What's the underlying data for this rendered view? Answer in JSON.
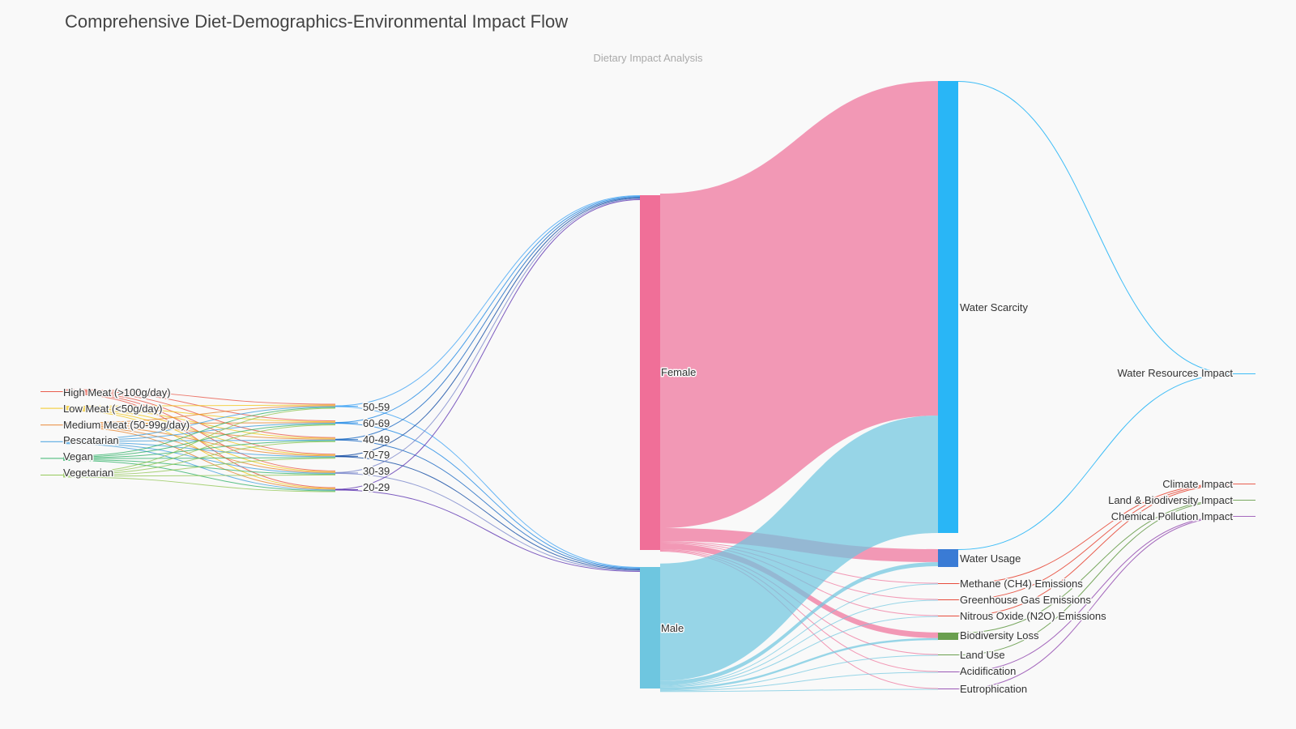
{
  "chart_data": {
    "type": "sankey",
    "title": "Comprehensive Diet-Demographics-Environmental Impact Flow",
    "subtitle": "Dietary Impact Analysis",
    "nodes": [
      {
        "id": "high_meat",
        "label": "High Meat (>100g/day)",
        "color": "#e74c3c",
        "column": 0
      },
      {
        "id": "low_meat",
        "label": "Low Meat (<50g/day)",
        "color": "#f1c40f",
        "column": 0
      },
      {
        "id": "medium_meat",
        "label": "Medium Meat (50-99g/day)",
        "color": "#e67e22",
        "column": 0
      },
      {
        "id": "pescatarian",
        "label": "Pescatarian",
        "color": "#3498db",
        "column": 0
      },
      {
        "id": "vegan",
        "label": "Vegan",
        "color": "#27ae60",
        "column": 0
      },
      {
        "id": "vegetarian",
        "label": "Vegetarian",
        "color": "#8bc34a",
        "column": 0
      },
      {
        "id": "age_50_59",
        "label": "50-59",
        "color": "#42a5f5",
        "column": 1
      },
      {
        "id": "age_60_69",
        "label": "60-69",
        "color": "#1e88e5",
        "column": 1
      },
      {
        "id": "age_40_49",
        "label": "40-49",
        "color": "#1565c0",
        "column": 1
      },
      {
        "id": "age_70_79",
        "label": "70-79",
        "color": "#0d47a1",
        "column": 1
      },
      {
        "id": "age_30_39",
        "label": "30-39",
        "color": "#7986cb",
        "column": 1
      },
      {
        "id": "age_20_29",
        "label": "20-29",
        "color": "#5e35b1",
        "column": 1
      },
      {
        "id": "female",
        "label": "Female",
        "color": "#f06f98",
        "column": 2
      },
      {
        "id": "male",
        "label": "Male",
        "color": "#6ec6e0",
        "column": 2
      },
      {
        "id": "water_scarcity",
        "label": "Water Scarcity",
        "color": "#29b6f6",
        "column": 3
      },
      {
        "id": "water_usage",
        "label": "Water Usage",
        "color": "#3a7bd5",
        "column": 3
      },
      {
        "id": "methane",
        "label": "Methane (CH4) Emissions",
        "color": "#e74c3c",
        "column": 3
      },
      {
        "id": "ghg",
        "label": "Greenhouse Gas Emissions",
        "color": "#e74c3c",
        "column": 3
      },
      {
        "id": "n2o",
        "label": "Nitrous Oxide (N2O) Emissions",
        "color": "#e74c3c",
        "column": 3
      },
      {
        "id": "biodiversity",
        "label": "Biodiversity Loss",
        "color": "#6a9f4f",
        "column": 3
      },
      {
        "id": "land_use",
        "label": "Land Use",
        "color": "#6a9f4f",
        "column": 3
      },
      {
        "id": "acidification",
        "label": "Acidification",
        "color": "#9b59b6",
        "column": 3
      },
      {
        "id": "eutrophication",
        "label": "Eutrophication",
        "color": "#9b59b6",
        "column": 3
      },
      {
        "id": "water_resources",
        "label": "Water Resources Impact",
        "color": "#29b6f6",
        "column": 4
      },
      {
        "id": "climate",
        "label": "Climate Impact",
        "color": "#e74c3c",
        "column": 4
      },
      {
        "id": "land_bio",
        "label": "Land & Biodiversity Impact",
        "color": "#6a9f4f",
        "column": 4
      },
      {
        "id": "chemical",
        "label": "Chemical Pollution Impact",
        "color": "#9b59b6",
        "column": 4
      }
    ],
    "links": [
      {
        "source": "high_meat",
        "target": "age_50_59",
        "value": 1
      },
      {
        "source": "high_meat",
        "target": "age_60_69",
        "value": 1
      },
      {
        "source": "high_meat",
        "target": "age_40_49",
        "value": 1
      },
      {
        "source": "high_meat",
        "target": "age_70_79",
        "value": 1
      },
      {
        "source": "high_meat",
        "target": "age_30_39",
        "value": 1
      },
      {
        "source": "high_meat",
        "target": "age_20_29",
        "value": 1
      },
      {
        "source": "low_meat",
        "target": "age_50_59",
        "value": 1
      },
      {
        "source": "low_meat",
        "target": "age_60_69",
        "value": 1
      },
      {
        "source": "low_meat",
        "target": "age_40_49",
        "value": 1
      },
      {
        "source": "low_meat",
        "target": "age_70_79",
        "value": 1
      },
      {
        "source": "low_meat",
        "target": "age_30_39",
        "value": 1
      },
      {
        "source": "low_meat",
        "target": "age_20_29",
        "value": 1
      },
      {
        "source": "medium_meat",
        "target": "age_50_59",
        "value": 1
      },
      {
        "source": "medium_meat",
        "target": "age_60_69",
        "value": 1
      },
      {
        "source": "medium_meat",
        "target": "age_40_49",
        "value": 1
      },
      {
        "source": "medium_meat",
        "target": "age_70_79",
        "value": 1
      },
      {
        "source": "medium_meat",
        "target": "age_30_39",
        "value": 1
      },
      {
        "source": "medium_meat",
        "target": "age_20_29",
        "value": 1
      },
      {
        "source": "pescatarian",
        "target": "age_50_59",
        "value": 1
      },
      {
        "source": "pescatarian",
        "target": "age_60_69",
        "value": 1
      },
      {
        "source": "pescatarian",
        "target": "age_40_49",
        "value": 1
      },
      {
        "source": "pescatarian",
        "target": "age_70_79",
        "value": 1
      },
      {
        "source": "pescatarian",
        "target": "age_30_39",
        "value": 1
      },
      {
        "source": "pescatarian",
        "target": "age_20_29",
        "value": 1
      },
      {
        "source": "vegan",
        "target": "age_50_59",
        "value": 1
      },
      {
        "source": "vegan",
        "target": "age_60_69",
        "value": 1
      },
      {
        "source": "vegan",
        "target": "age_40_49",
        "value": 1
      },
      {
        "source": "vegan",
        "target": "age_70_79",
        "value": 1
      },
      {
        "source": "vegan",
        "target": "age_30_39",
        "value": 1
      },
      {
        "source": "vegan",
        "target": "age_20_29",
        "value": 1
      },
      {
        "source": "vegetarian",
        "target": "age_50_59",
        "value": 1
      },
      {
        "source": "vegetarian",
        "target": "age_60_69",
        "value": 1
      },
      {
        "source": "vegetarian",
        "target": "age_40_49",
        "value": 1
      },
      {
        "source": "vegetarian",
        "target": "age_70_79",
        "value": 1
      },
      {
        "source": "vegetarian",
        "target": "age_30_39",
        "value": 1
      },
      {
        "source": "vegetarian",
        "target": "age_20_29",
        "value": 1
      },
      {
        "source": "age_50_59",
        "target": "female",
        "value": 1
      },
      {
        "source": "age_50_59",
        "target": "male",
        "value": 1
      },
      {
        "source": "age_60_69",
        "target": "female",
        "value": 1
      },
      {
        "source": "age_60_69",
        "target": "male",
        "value": 1
      },
      {
        "source": "age_40_49",
        "target": "female",
        "value": 1
      },
      {
        "source": "age_40_49",
        "target": "male",
        "value": 1
      },
      {
        "source": "age_70_79",
        "target": "female",
        "value": 1
      },
      {
        "source": "age_70_79",
        "target": "male",
        "value": 1
      },
      {
        "source": "age_30_39",
        "target": "female",
        "value": 1
      },
      {
        "source": "age_30_39",
        "target": "male",
        "value": 1
      },
      {
        "source": "age_20_29",
        "target": "female",
        "value": 1
      },
      {
        "source": "age_20_29",
        "target": "male",
        "value": 1
      },
      {
        "source": "female",
        "target": "water_scarcity",
        "value": 810
      },
      {
        "source": "female",
        "target": "water_usage",
        "value": 28
      },
      {
        "source": "female",
        "target": "methane",
        "value": 1
      },
      {
        "source": "female",
        "target": "ghg",
        "value": 1
      },
      {
        "source": "female",
        "target": "n2o",
        "value": 1
      },
      {
        "source": "female",
        "target": "biodiversity",
        "value": 10
      },
      {
        "source": "female",
        "target": "land_use",
        "value": 1
      },
      {
        "source": "female",
        "target": "acidification",
        "value": 1
      },
      {
        "source": "female",
        "target": "eutrophication",
        "value": 1
      },
      {
        "source": "male",
        "target": "water_scarcity",
        "value": 206
      },
      {
        "source": "male",
        "target": "water_usage",
        "value": 7
      },
      {
        "source": "male",
        "target": "methane",
        "value": 1
      },
      {
        "source": "male",
        "target": "ghg",
        "value": 1
      },
      {
        "source": "male",
        "target": "n2o",
        "value": 1
      },
      {
        "source": "male",
        "target": "biodiversity",
        "value": 3
      },
      {
        "source": "male",
        "target": "land_use",
        "value": 1
      },
      {
        "source": "male",
        "target": "acidification",
        "value": 1
      },
      {
        "source": "male",
        "target": "eutrophication",
        "value": 1
      },
      {
        "source": "water_scarcity",
        "target": "water_resources",
        "value": 1
      },
      {
        "source": "water_usage",
        "target": "water_resources",
        "value": 1
      },
      {
        "source": "methane",
        "target": "climate",
        "value": 1
      },
      {
        "source": "ghg",
        "target": "climate",
        "value": 1
      },
      {
        "source": "n2o",
        "target": "climate",
        "value": 1
      },
      {
        "source": "biodiversity",
        "target": "land_bio",
        "value": 1
      },
      {
        "source": "land_use",
        "target": "land_bio",
        "value": 1
      },
      {
        "source": "acidification",
        "target": "chemical",
        "value": 1
      },
      {
        "source": "eutrophication",
        "target": "chemical",
        "value": 1
      }
    ]
  }
}
